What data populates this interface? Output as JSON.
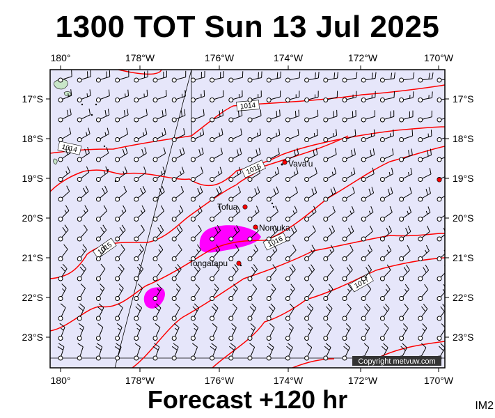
{
  "title": "1300 TOT Sun 13 Jul 2025",
  "footer": "Forecast +120 hr",
  "image_code": "IM2",
  "copyright": "Copyright metvuw.com",
  "lon_labels": [
    "180°",
    "178°W",
    "176°W",
    "174°W",
    "172°W",
    "170°W"
  ],
  "lat_labels": [
    "17°S",
    "18°S",
    "19°S",
    "20°S",
    "21°S",
    "22°S",
    "23°S"
  ],
  "places": [
    {
      "name": "Vava'u",
      "lon": -174.0,
      "lat": -18.65
    },
    {
      "name": "Tofua",
      "lon": -175.05,
      "lat": -19.75
    },
    {
      "name": "Nomuka",
      "lon": -174.8,
      "lat": -20.25
    },
    {
      "name": "Tongatapu",
      "lon": -175.2,
      "lat": -21.15
    }
  ],
  "isobar_labels": [
    "1014",
    "1014",
    "1015",
    "1015",
    "1016",
    "1017"
  ],
  "colors": {
    "sea": "#e6e6fa",
    "isobar": "#ff0000",
    "rain": "#ff00ff",
    "place_dot": "#ff0000",
    "barb": "#000000"
  },
  "wind_field": {
    "direction_from": "east-southeast",
    "typical_barbs": "1-2 full barbs"
  }
}
